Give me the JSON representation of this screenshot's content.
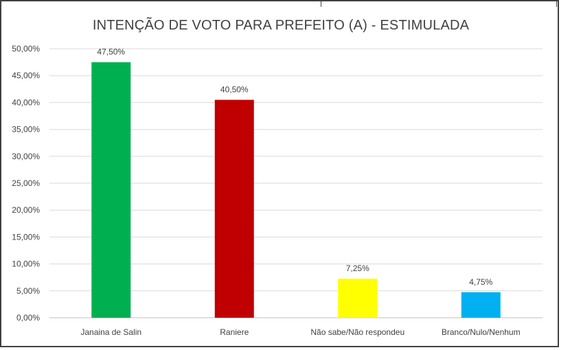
{
  "chart_data": {
    "type": "bar",
    "title": "INTENÇÃO DE VOTO PARA PREFEITO (A) - ESTIMULADA",
    "xlabel": "",
    "ylabel": "",
    "ylim": [
      0,
      50
    ],
    "yticks": [
      "0,00%",
      "5,00%",
      "10,00%",
      "15,00%",
      "20,00%",
      "25,00%",
      "30,00%",
      "35,00%",
      "40,00%",
      "45,00%",
      "50,00%"
    ],
    "grid": true,
    "legend": "none",
    "categories": [
      "Janaina de Salin",
      "Raniere",
      "Não sabe/Não respondeu",
      "Branco/Nulo/Nenhum"
    ],
    "values": [
      47.5,
      40.5,
      7.25,
      4.75
    ],
    "data_labels": [
      "47,50%",
      "40,50%",
      "7,25%",
      "4,75%"
    ],
    "colors": [
      "#00b050",
      "#c00000",
      "#ffff00",
      "#00b0f0"
    ]
  }
}
